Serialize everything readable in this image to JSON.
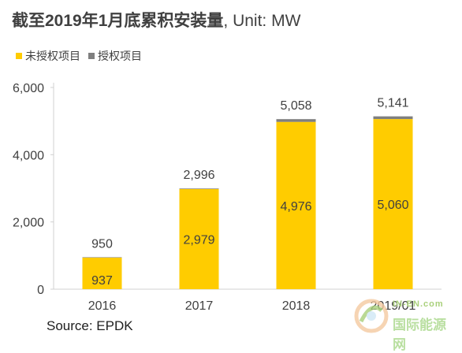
{
  "title": {
    "main": "截至2019年1月底累积安装量",
    "unit": ", Unit: MW"
  },
  "legend": [
    {
      "label": "未授权项目",
      "color": "#FFCC00"
    },
    {
      "label": "授权项目",
      "color": "#7F7F7F"
    }
  ],
  "source": "Source: EPDK",
  "watermark": {
    "top": "IN-EN.com",
    "bottom": "国际能源网"
  },
  "chart_data": {
    "type": "bar",
    "stacked": true,
    "title": "截至2019年1月底累积安装量, Unit: MW",
    "categories": [
      "2016",
      "2017",
      "2018",
      "2019/01"
    ],
    "series": [
      {
        "name": "未授权项目",
        "color": "#FFCC00",
        "values": [
          937,
          2979,
          4976,
          5060
        ],
        "labels": [
          "937",
          "2,979",
          "4,976",
          "5,060"
        ]
      },
      {
        "name": "授权项目",
        "color": "#7F7F7F",
        "values": [
          13,
          17,
          82,
          81
        ]
      }
    ],
    "totals": [
      950,
      2996,
      5058,
      5141
    ],
    "total_labels": [
      "950",
      "2,996",
      "5,058",
      "5,141"
    ],
    "ylim": [
      0,
      6000
    ],
    "yticks": [
      0,
      2000,
      4000,
      6000
    ],
    "ytick_labels": [
      "0",
      "2,000",
      "4,000",
      "6,000"
    ],
    "grid": false,
    "legend_position": "top-left"
  }
}
